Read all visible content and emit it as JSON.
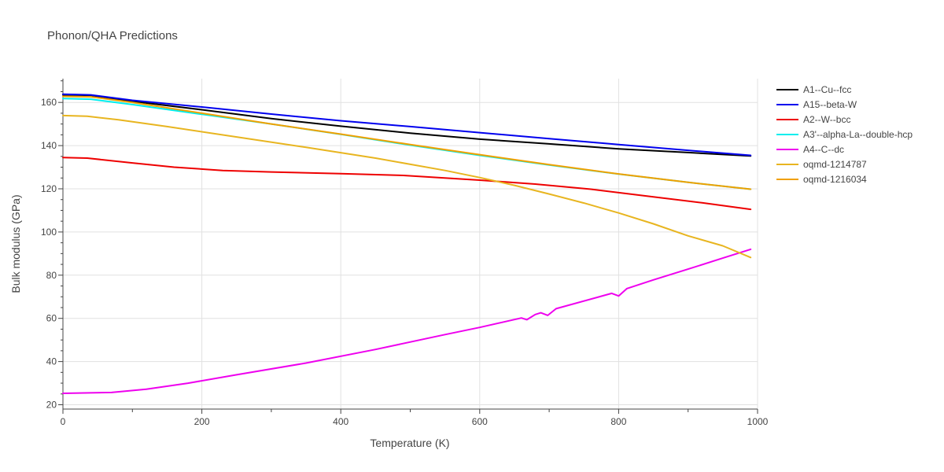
{
  "chart_data": {
    "type": "line",
    "title": "Phonon/QHA Predictions",
    "xlabel": "Temperature (K)",
    "ylabel": "Bulk modulus (GPa)",
    "xlim": [
      0,
      1000
    ],
    "ylim": [
      18,
      171
    ],
    "xticks": [
      0,
      200,
      400,
      600,
      800,
      1000
    ],
    "yticks": [
      20,
      40,
      60,
      80,
      100,
      120,
      140,
      160
    ],
    "grid": true,
    "legend_position": "right",
    "series": [
      {
        "name": "A1--Cu--fcc",
        "color": "#000000",
        "x": [
          0,
          40,
          100,
          200,
          300,
          400,
          500,
          600,
          700,
          800,
          900,
          990
        ],
        "y": [
          163.5,
          163.3,
          160.5,
          156.6,
          152.5,
          149.0,
          145.8,
          143.0,
          140.8,
          138.5,
          136.8,
          135.2
        ]
      },
      {
        "name": "A15--beta-W",
        "color": "#0000ee",
        "x": [
          0,
          40,
          100,
          200,
          300,
          400,
          500,
          600,
          700,
          800,
          900,
          990
        ],
        "y": [
          163.8,
          163.5,
          161.0,
          157.9,
          154.6,
          151.5,
          148.8,
          146.0,
          143.2,
          140.5,
          137.8,
          135.5
        ]
      },
      {
        "name": "A2--W--bcc",
        "color": "#ee0000",
        "x": [
          0,
          35,
          100,
          160,
          230,
          300,
          400,
          490,
          600,
          680,
          760,
          850,
          920,
          990
        ],
        "y": [
          134.5,
          134.2,
          132.0,
          130.0,
          128.5,
          127.8,
          127.0,
          126.2,
          124.0,
          122.2,
          119.8,
          116.3,
          113.5,
          110.5
        ]
      },
      {
        "name": "A3'--alpha-La--double-hcp",
        "color": "#00eeee",
        "x": [
          0,
          40,
          100,
          200,
          300,
          400,
          500,
          600,
          700,
          800,
          900,
          990
        ],
        "y": [
          161.8,
          161.5,
          159.0,
          154.5,
          150.0,
          145.2,
          140.2,
          135.5,
          131.0,
          126.8,
          123.0,
          119.8
        ]
      },
      {
        "name": "A4--C--dc",
        "color": "#ee00ee",
        "x": [
          0,
          70,
          120,
          180,
          250,
          350,
          450,
          550,
          600,
          660,
          668,
          680,
          688,
          698,
          710,
          790,
          800,
          812,
          850,
          900,
          950,
          990
        ],
        "y": [
          25.3,
          25.7,
          27.2,
          30.0,
          33.9,
          39.3,
          45.6,
          52.5,
          55.8,
          60.2,
          59.4,
          61.8,
          62.6,
          61.4,
          64.5,
          71.6,
          70.4,
          73.8,
          77.8,
          82.8,
          87.9,
          92.0
        ]
      },
      {
        "name": "oqmd-1214787",
        "color": "#e8b520",
        "x": [
          0,
          35,
          80,
          150,
          250,
          350,
          450,
          550,
          600,
          650,
          700,
          750,
          800,
          850,
          900,
          950,
          990
        ],
        "y": [
          153.9,
          153.6,
          152.0,
          148.8,
          144.0,
          139.2,
          134.2,
          128.5,
          125.2,
          121.6,
          117.6,
          113.4,
          108.8,
          103.8,
          98.2,
          93.6,
          88.2
        ]
      },
      {
        "name": "oqmd-1216034",
        "color": "#f0a000",
        "x": [
          0,
          40,
          100,
          200,
          300,
          400,
          500,
          600,
          700,
          800,
          900,
          990
        ],
        "y": [
          162.8,
          162.6,
          160.0,
          155.0,
          150.0,
          145.3,
          140.5,
          135.8,
          131.2,
          126.9,
          123.0,
          119.8
        ]
      }
    ]
  }
}
